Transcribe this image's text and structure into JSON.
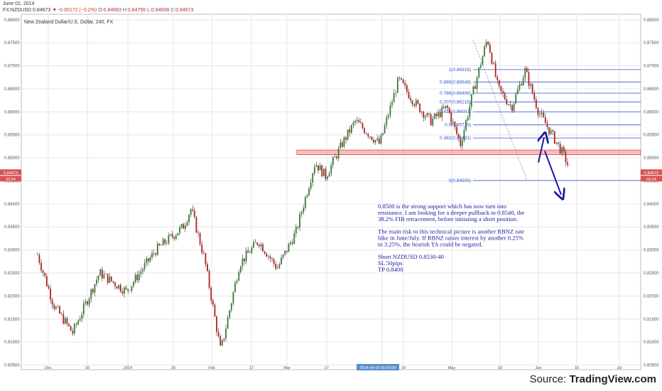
{
  "header": {
    "date": "June 02, 2014",
    "symbol": "FX:NZDUSD",
    "last": "0.84673",
    "change": "▼−0.00172 (−0.2%)",
    "o_label": "O:",
    "o": "0.84683",
    "h_label": "H:",
    "h": "0.84756",
    "l_label": "L:",
    "l": "0.84608",
    "c_label": "C:",
    "c": "0.84673"
  },
  "source": {
    "prefix": "Source: ",
    "name": "TradingView.com"
  },
  "colors": {
    "up": "#2e7d32",
    "down": "#b71c1c",
    "wick": "#333333",
    "fib": "#3355cc",
    "zone_fill": "#f4a7a7",
    "zone_stroke": "#d44",
    "arrow": "#1a1aa0",
    "annotation": "#1a1aa0",
    "price_tag": "#d9534f",
    "grid": "#e6e6e6"
  },
  "chart_data": {
    "type": "candlestick",
    "title": "New Zealand Dollar/U.S. Dollar, 240, FX",
    "ylim": [
      0.8045,
      0.8815
    ],
    "yticks": [
      "0.88000",
      "0.87500",
      "0.87000",
      "0.86500",
      "0.86000",
      "0.85500",
      "0.85000",
      "0.84500",
      "0.84000",
      "0.83500",
      "0.83000",
      "0.82500",
      "0.82000",
      "0.81500",
      "0.81000",
      "0.80500"
    ],
    "xticks": [
      "Dec",
      "16",
      "2014",
      "20",
      "Feb",
      "17",
      "Mar",
      "17",
      "2014-04-03 05:00:00",
      "14",
      "May",
      "19",
      "Jun",
      "16",
      "Jul"
    ],
    "price_tags": [
      "0.84673",
      "53:24"
    ],
    "zone": {
      "low": 0.8507,
      "high": 0.8517
    },
    "fib_levels": [
      {
        "label": "1(0.86918)",
        "value": 0.86918
      },
      {
        "label": "0.886(0.86648)",
        "value": 0.86648
      },
      {
        "label": "0.786(0.86406)",
        "value": 0.86406
      },
      {
        "label": "0.707(0.86216)",
        "value": 0.86216
      },
      {
        "label": "0.618(0.86001)",
        "value": 0.86001
      },
      {
        "label": "0.5(0.85716)",
        "value": 0.85716
      },
      {
        "label": "0.382(0.85431)",
        "value": 0.85431
      },
      {
        "label": "0(0.84509)",
        "value": 0.84509
      }
    ],
    "trend": [
      {
        "date": "Nov 27",
        "price": 0.829
      },
      {
        "date": "Dec 3",
        "price": 0.818
      },
      {
        "date": "Dec 10",
        "price": 0.812
      },
      {
        "date": "Dec 20",
        "price": 0.825
      },
      {
        "date": "Dec 30",
        "price": 0.821
      },
      {
        "date": "Jan 10",
        "price": 0.83
      },
      {
        "date": "Jan 20",
        "price": 0.835
      },
      {
        "date": "Jan 23",
        "price": 0.839
      },
      {
        "date": "Jan 28",
        "price": 0.828
      },
      {
        "date": "Feb 3",
        "price": 0.808
      },
      {
        "date": "Feb 10",
        "price": 0.827
      },
      {
        "date": "Feb 17",
        "price": 0.832
      },
      {
        "date": "Feb 24",
        "price": 0.826
      },
      {
        "date": "Mar 3",
        "price": 0.834
      },
      {
        "date": "Mar 10",
        "price": 0.849
      },
      {
        "date": "Mar 14",
        "price": 0.846
      },
      {
        "date": "Mar 20",
        "price": 0.853
      },
      {
        "date": "Mar 25",
        "price": 0.858
      },
      {
        "date": "Apr 3",
        "price": 0.853
      },
      {
        "date": "Apr 10",
        "price": 0.867
      },
      {
        "date": "Apr 16",
        "price": 0.862
      },
      {
        "date": "Apr 22",
        "price": 0.858
      },
      {
        "date": "Apr 28",
        "price": 0.861
      },
      {
        "date": "May 3",
        "price": 0.853
      },
      {
        "date": "May 8",
        "price": 0.865
      },
      {
        "date": "May 13",
        "price": 0.876
      },
      {
        "date": "May 17",
        "price": 0.865
      },
      {
        "date": "May 22",
        "price": 0.861
      },
      {
        "date": "May 27",
        "price": 0.869
      },
      {
        "date": "Jun 1",
        "price": 0.86
      },
      {
        "date": "Jun 6",
        "price": 0.855
      },
      {
        "date": "Jun 10",
        "price": 0.851
      },
      {
        "date": "Jun 13",
        "price": 0.847
      }
    ],
    "annotation": [
      "0.8500 is the strong support which has now turn into",
      "resistance. I am looking for a deeper pullback to 0.8540, the",
      "38.2% FIB retracement, before initiating a short position.",
      "",
      "The main risk to this technical picture is another RBNZ rate",
      "hike in June/July. If RBNZ raises interest by another 0.25%",
      "to 3.25%, the bearish TA could be negated.",
      "",
      "Short NZDUSD 0.8530-40",
      "SL 50pips",
      "TP 0.8400"
    ],
    "arrows": [
      {
        "from": 0.849,
        "to": 0.8545
      },
      {
        "from": 0.8515,
        "to": 0.842
      }
    ]
  }
}
